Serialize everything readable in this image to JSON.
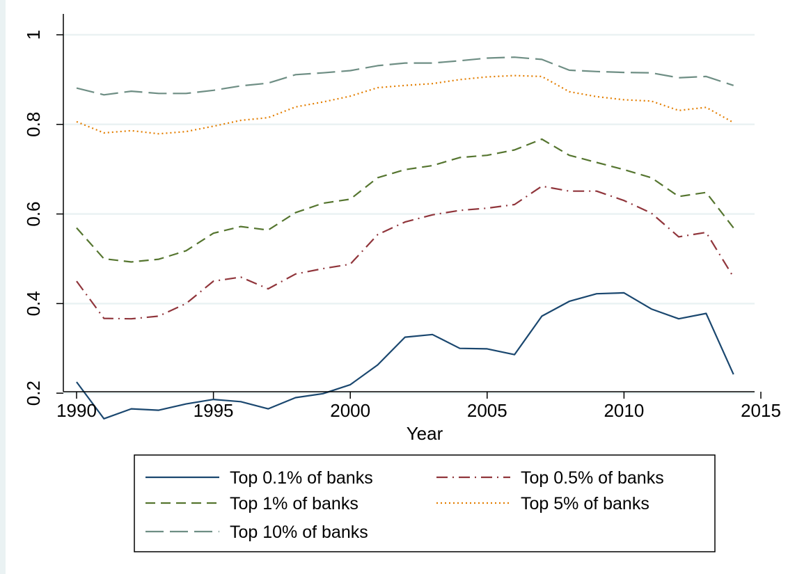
{
  "chart_data": {
    "type": "line",
    "title": "",
    "xlabel": "Year",
    "ylabel": "",
    "xlim": [
      1990,
      2015
    ],
    "ylim": [
      0.1,
      1
    ],
    "x_ticks": [
      1990,
      1995,
      2000,
      2005,
      2010,
      2015
    ],
    "y_ticks": [
      0.2,
      0.4,
      0.6,
      0.8,
      1
    ],
    "y_tick_labels": [
      "0.2",
      "0.4",
      "0.6",
      "0.8",
      "1"
    ],
    "grid": "horizontal",
    "legend_position": "bottom",
    "x": [
      1990,
      1991,
      1992,
      1993,
      1994,
      1995,
      1996,
      1997,
      1998,
      1999,
      2000,
      2001,
      2002,
      2003,
      2004,
      2005,
      2006,
      2007,
      2008,
      2009,
      2010,
      2011,
      2012,
      2013,
      2014
    ],
    "series": [
      {
        "name": "Top 0.1% of banks",
        "color": "#1a476f",
        "style": "solid",
        "values": [
          0.225,
          0.143,
          0.165,
          0.162,
          0.176,
          0.186,
          0.181,
          0.165,
          0.19,
          0.199,
          0.219,
          0.263,
          0.325,
          0.331,
          0.3,
          0.299,
          0.286,
          0.372,
          0.405,
          0.422,
          0.424,
          0.388,
          0.366,
          0.378,
          0.242
        ]
      },
      {
        "name": "Top 0.5% of banks",
        "color": "#90353b",
        "style": "dashdot",
        "values": [
          0.45,
          0.367,
          0.366,
          0.372,
          0.4,
          0.45,
          0.459,
          0.433,
          0.466,
          0.478,
          0.488,
          0.554,
          0.582,
          0.598,
          0.608,
          0.613,
          0.621,
          0.662,
          0.651,
          0.651,
          0.63,
          0.602,
          0.549,
          0.559,
          0.459
        ]
      },
      {
        "name": "Top 1% of banks",
        "color": "#55752f",
        "style": "dash",
        "values": [
          0.569,
          0.5,
          0.493,
          0.499,
          0.518,
          0.557,
          0.572,
          0.564,
          0.603,
          0.624,
          0.633,
          0.681,
          0.699,
          0.708,
          0.726,
          0.731,
          0.743,
          0.767,
          0.731,
          0.715,
          0.699,
          0.681,
          0.639,
          0.648,
          0.569
        ]
      },
      {
        "name": "Top 5% of banks",
        "color": "#e37e00",
        "style": "dot",
        "values": [
          0.806,
          0.781,
          0.786,
          0.779,
          0.784,
          0.796,
          0.809,
          0.815,
          0.839,
          0.85,
          0.863,
          0.882,
          0.887,
          0.891,
          0.9,
          0.906,
          0.909,
          0.907,
          0.873,
          0.862,
          0.855,
          0.852,
          0.831,
          0.838,
          0.804
        ]
      },
      {
        "name": "Top 10% of banks",
        "color": "#6e8e84",
        "style": "longdash",
        "values": [
          0.881,
          0.866,
          0.874,
          0.869,
          0.869,
          0.876,
          0.886,
          0.892,
          0.911,
          0.915,
          0.92,
          0.931,
          0.937,
          0.937,
          0.942,
          0.948,
          0.95,
          0.945,
          0.921,
          0.918,
          0.916,
          0.915,
          0.904,
          0.907,
          0.887
        ]
      }
    ]
  }
}
